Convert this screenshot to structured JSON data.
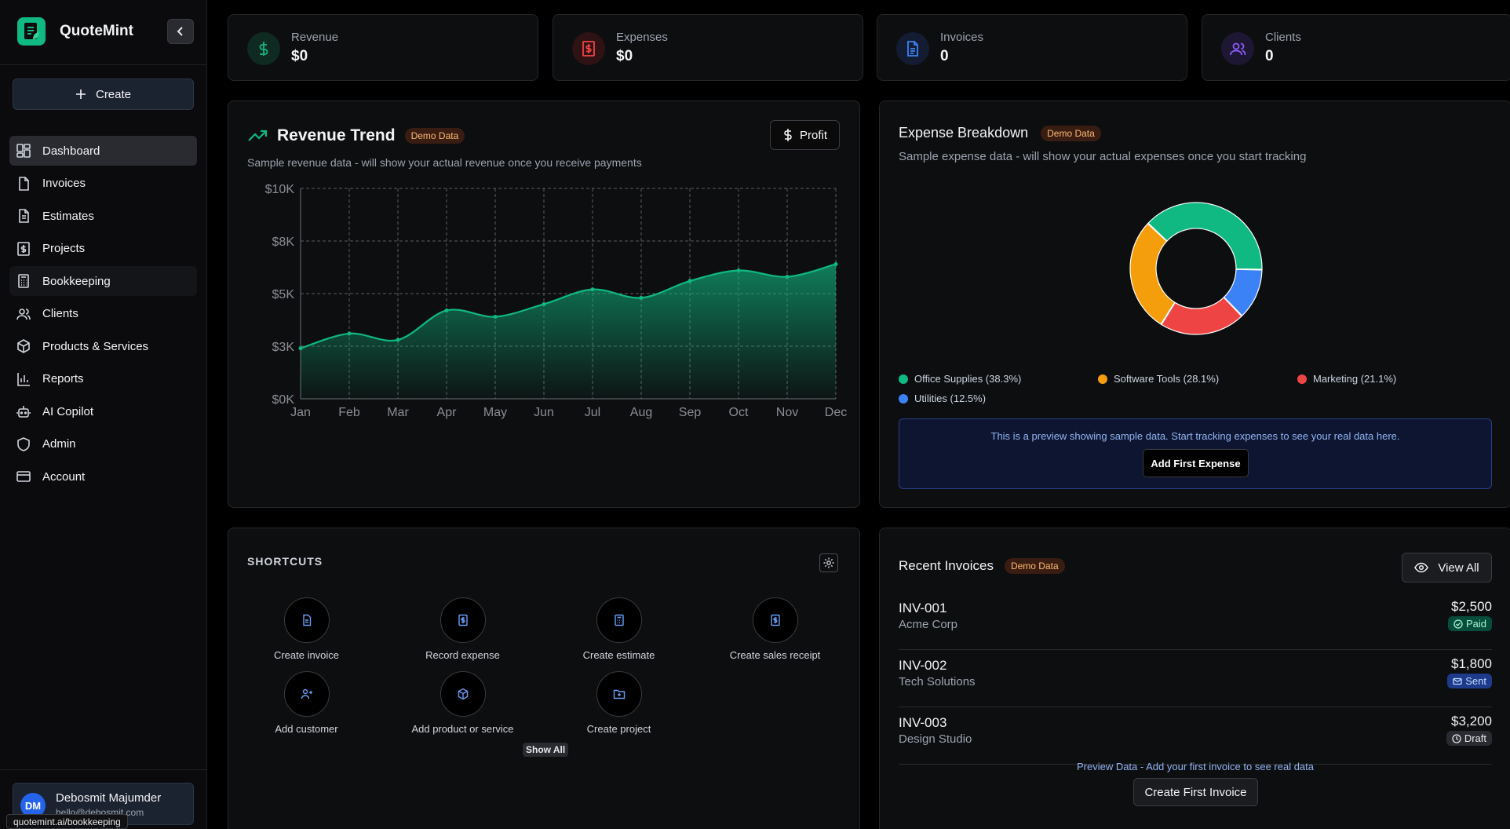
{
  "app": {
    "name": "QuoteMint",
    "status_url": "quotemint.ai/bookkeeping"
  },
  "sidebar": {
    "create_label": "Create",
    "items": [
      {
        "label": "Dashboard",
        "icon": "dashboard-icon"
      },
      {
        "label": "Invoices",
        "icon": "file-icon"
      },
      {
        "label": "Estimates",
        "icon": "file-text-icon"
      },
      {
        "label": "Projects",
        "icon": "dollar-file-icon"
      },
      {
        "label": "Bookkeeping",
        "icon": "calculator-icon"
      },
      {
        "label": "Clients",
        "icon": "users-icon"
      },
      {
        "label": "Products & Services",
        "icon": "package-icon"
      },
      {
        "label": "Reports",
        "icon": "bar-chart-icon"
      },
      {
        "label": "AI Copilot",
        "icon": "bot-icon"
      },
      {
        "label": "Admin",
        "icon": "shield-icon"
      },
      {
        "label": "Account",
        "icon": "credit-card-icon"
      }
    ],
    "user": {
      "initials": "DM",
      "name": "Debosmit Majumder",
      "email": "hello@debosmit.com"
    }
  },
  "stats": [
    {
      "label": "Revenue",
      "value": "$0",
      "color": "#10b981"
    },
    {
      "label": "Expenses",
      "value": "$0",
      "color": "#ef4444"
    },
    {
      "label": "Invoices",
      "value": "0",
      "color": "#3b82f6"
    },
    {
      "label": "Clients",
      "value": "0",
      "color": "#8b5cf6"
    }
  ],
  "revenue_trend": {
    "title": "Revenue Trend",
    "badge": "Demo Data",
    "subtitle": "Sample revenue data - will show your actual revenue once you receive payments",
    "button_label": "Profit"
  },
  "expense_breakdown": {
    "title": "Expense Breakdown",
    "badge": "Demo Data",
    "subtitle": "Sample expense data - will show your actual expenses once you start tracking",
    "legend": [
      "Office Supplies (38.3%)",
      "Software Tools (28.1%)",
      "Marketing (21.1%)",
      "Utilities (12.5%)"
    ],
    "preview_text": "This is a preview showing sample data. Start tracking expenses to see your real data here.",
    "button_label": "Add First Expense"
  },
  "shortcuts": {
    "title": "SHORTCUTS",
    "items": [
      "Create invoice",
      "Record expense",
      "Create estimate",
      "Create sales receipt",
      "Add customer",
      "Add product or service",
      "Create project"
    ],
    "show_all": "Show All"
  },
  "recent_invoices": {
    "title": "Recent Invoices",
    "badge": "Demo Data",
    "view_all": "View All",
    "rows": [
      {
        "id": "INV-001",
        "client": "Acme Corp",
        "amount": "$2,500",
        "status": "Paid"
      },
      {
        "id": "INV-002",
        "client": "Tech Solutions",
        "amount": "$1,800",
        "status": "Sent"
      },
      {
        "id": "INV-003",
        "client": "Design Studio",
        "amount": "$3,200",
        "status": "Draft"
      }
    ],
    "note": "Preview Data - Add your first invoice to see real data",
    "button_label": "Create First Invoice"
  },
  "chart_data": [
    {
      "type": "area",
      "title": "Revenue Trend",
      "categories": [
        "Jan",
        "Feb",
        "Mar",
        "Apr",
        "May",
        "Jun",
        "Jul",
        "Aug",
        "Sep",
        "Oct",
        "Nov",
        "Dec"
      ],
      "values": [
        2400,
        3100,
        2800,
        4200,
        3900,
        4500,
        5200,
        4800,
        5600,
        6100,
        5800,
        6400
      ],
      "y_tick_labels": [
        "$0K",
        "$3K",
        "$5K",
        "$8K",
        "$10K"
      ],
      "ylim": [
        0,
        10000
      ],
      "grid": true,
      "color": "#10b981"
    },
    {
      "type": "pie",
      "title": "Expense Breakdown",
      "categories": [
        "Office Supplies",
        "Software Tools",
        "Marketing",
        "Utilities"
      ],
      "values": [
        38.3,
        28.1,
        21.1,
        12.5
      ],
      "colors": [
        "#10b981",
        "#f59e0b",
        "#ef4444",
        "#3b82f6"
      ]
    }
  ]
}
